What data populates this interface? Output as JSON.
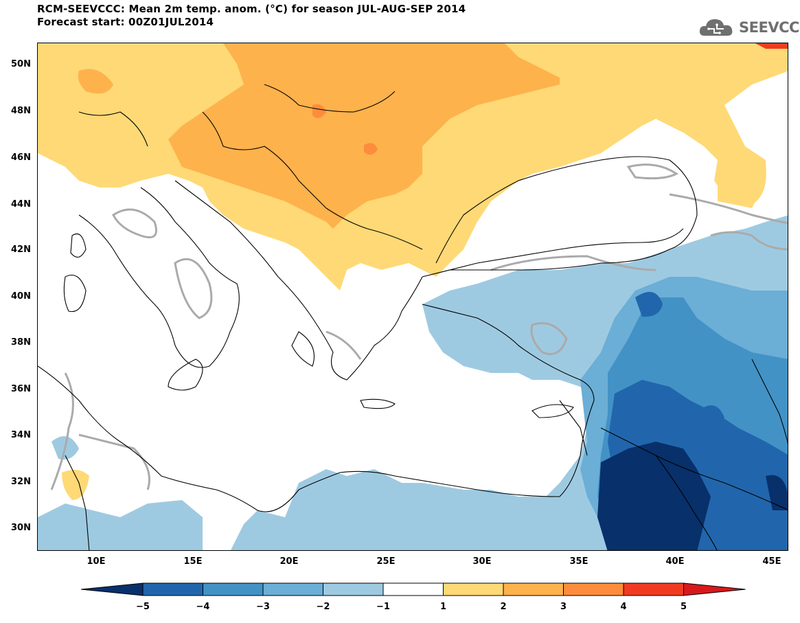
{
  "title": {
    "line1": "RCM-SEEVCCC: Mean 2m temp. anom. (°C) for season JUL-AUG-SEP 2014",
    "line2": "Forecast start: 00Z01JUL2014"
  },
  "logo": {
    "text": "SEEVCCC"
  },
  "axes": {
    "lat_labels": [
      "50N",
      "48N",
      "46N",
      "44N",
      "42N",
      "40N",
      "38N",
      "36N",
      "34N",
      "32N",
      "30N"
    ],
    "lon_labels": [
      "10E",
      "15E",
      "20E",
      "25E",
      "30E",
      "35E",
      "40E",
      "45E"
    ]
  },
  "colorbar": {
    "labels": [
      "−5",
      "−4",
      "−3",
      "−2",
      "−1",
      "1",
      "2",
      "3",
      "4",
      "5"
    ],
    "colors": [
      "#08306b",
      "#2166ac",
      "#4292c6",
      "#6baed6",
      "#9ecae1",
      "#ffffff",
      "#fed976",
      "#feb24c",
      "#fd8d3c",
      "#f03b20",
      "#d7191c"
    ]
  }
}
